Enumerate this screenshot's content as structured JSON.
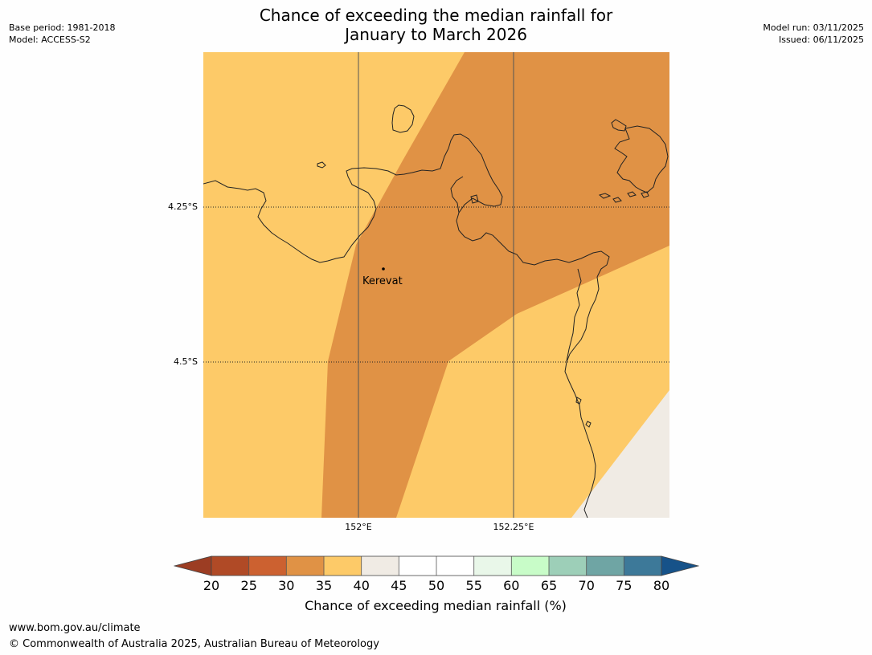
{
  "title": {
    "line1": "Chance of exceeding the median rainfall for",
    "line2": "January to March 2026"
  },
  "meta_left": {
    "base_period": "Base period: 1981-2018",
    "model": "Model: ACCESS-S2"
  },
  "meta_right": {
    "model_run": "Model run: 03/11/2025",
    "issued": "Issued: 06/11/2025"
  },
  "map": {
    "lat_labels": [
      "4.25°S",
      "4.5°S"
    ],
    "lon_labels": [
      "152°E",
      "152.25°E"
    ],
    "place": "Kerevat"
  },
  "colorbar": {
    "label": "Chance of exceeding median rainfall (%)",
    "ticks": [
      "20",
      "25",
      "30",
      "35",
      "40",
      "45",
      "50",
      "55",
      "60",
      "65",
      "70",
      "75",
      "80"
    ],
    "colors": [
      "#9c3d23",
      "#b04a26",
      "#cc6130",
      "#e09245",
      "#fdca68",
      "#f0ebe4",
      "#ffffff",
      "#ffffff",
      "#e9f7e9",
      "#c8fcc8",
      "#9dcfb8",
      "#6fa5a4",
      "#3d7999",
      "#165289"
    ]
  },
  "footer": {
    "url": "www.bom.gov.au/climate",
    "copyright": "© Commonwealth of Australia 2025, Australian Bureau of Meteorology"
  }
}
